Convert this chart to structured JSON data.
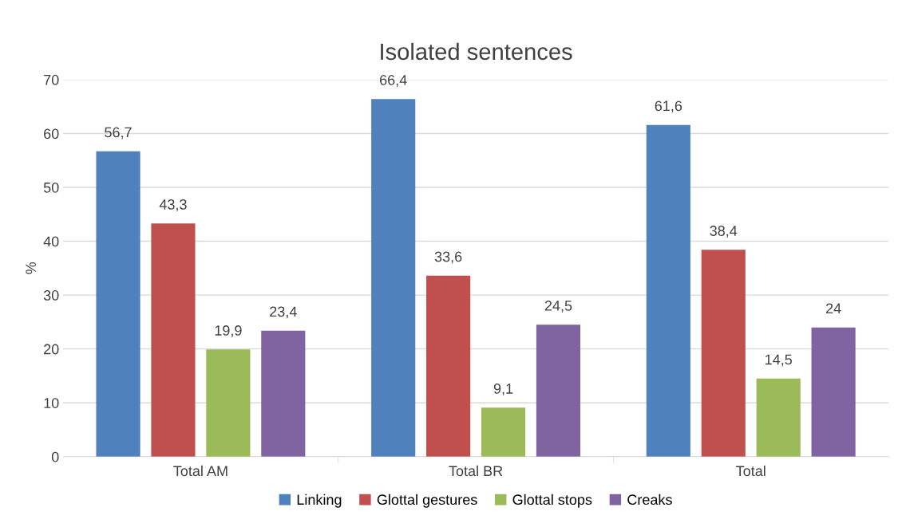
{
  "chart_data": {
    "type": "bar",
    "title": "Isolated sentences",
    "ylabel": "%",
    "categories": [
      "Total AM",
      "Total BR",
      "Total"
    ],
    "series": [
      {
        "name": "Linking",
        "color": "#4f81bd",
        "values": [
          56.7,
          66.4,
          61.6
        ],
        "value_labels": [
          "56,7",
          "66,4",
          "61,6"
        ]
      },
      {
        "name": "Glottal gestures",
        "color": "#c0504d",
        "values": [
          43.3,
          33.6,
          38.4
        ],
        "value_labels": [
          "43,3",
          "33,6",
          "38,4"
        ]
      },
      {
        "name": "Glottal stops",
        "color": "#9bbb59",
        "values": [
          19.9,
          9.1,
          14.5
        ],
        "value_labels": [
          "19,9",
          "9,1",
          "14,5"
        ]
      },
      {
        "name": "Creaks",
        "color": "#8064a2",
        "values": [
          23.4,
          24.5,
          24
        ],
        "value_labels": [
          "23,4",
          "24,5",
          "24"
        ]
      }
    ],
    "ylim": [
      0,
      70
    ],
    "yticks": [
      0,
      10,
      20,
      30,
      40,
      50,
      60,
      70
    ],
    "grid": "y",
    "legend": "bottom"
  }
}
